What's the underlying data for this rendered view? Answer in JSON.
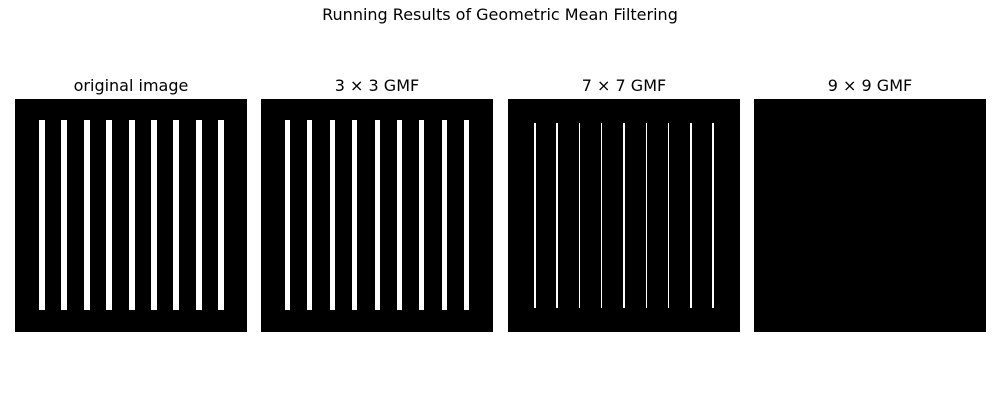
{
  "figure": {
    "title": "Running Results of Geometric Mean Filtering"
  },
  "panels": [
    {
      "title": "original image",
      "bar_count": 9,
      "background_color": "#000000",
      "bar_color": "#ffffff"
    },
    {
      "title": "3 × 3 GMF",
      "bar_count": 9,
      "background_color": "#000000",
      "bar_color": "#ffffff"
    },
    {
      "title": "7 × 7 GMF",
      "bar_count": 9,
      "background_color": "#000000",
      "bar_color": "#ffffff"
    },
    {
      "title": "9 × 9 GMF",
      "bar_count": 0,
      "background_color": "#000000",
      "bar_color": "#ffffff"
    }
  ]
}
